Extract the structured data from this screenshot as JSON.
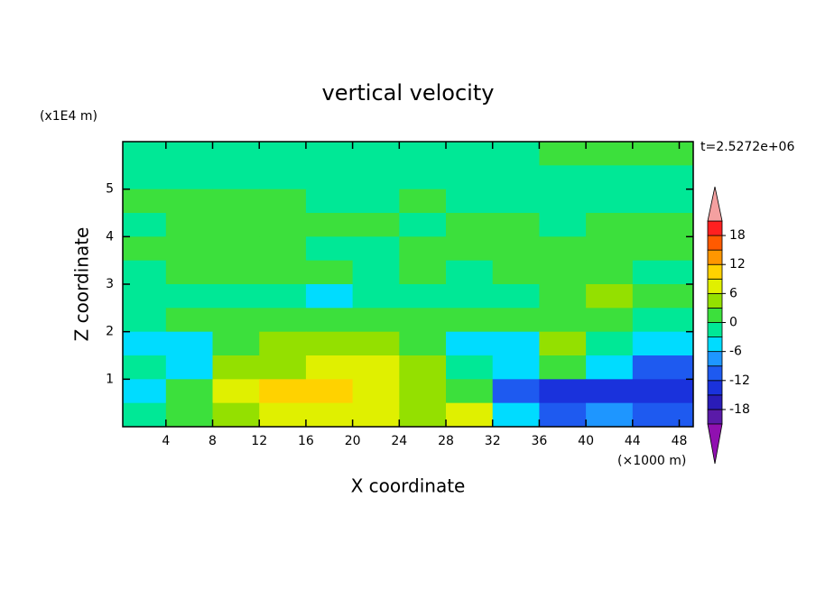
{
  "chart_data": {
    "type": "contour",
    "title": "vertical velocity",
    "x_label": "X coordinate",
    "y_label": "Z coordinate",
    "x_unit": "(×1000 m)",
    "y_unit": "(x1E4 m)",
    "annotation": "t=2.5272e+06",
    "x": [
      2,
      6,
      10,
      14,
      18,
      22,
      26,
      30,
      34,
      38,
      42,
      46
    ],
    "y": [
      5.75,
      5.25,
      4.75,
      4.25,
      3.75,
      3.25,
      2.75,
      2.25,
      1.75,
      1.25,
      0.75,
      0.25
    ],
    "z": [
      [
        -1,
        -1,
        -1,
        -1,
        -1,
        -1,
        -1,
        -1,
        -1,
        1,
        1,
        1
      ],
      [
        -1,
        -1,
        -1,
        -1,
        -1,
        -1,
        -1,
        -1,
        -1,
        -1,
        -1,
        -1
      ],
      [
        1,
        1,
        1,
        1,
        -1,
        -1,
        1,
        -1,
        -1,
        -1,
        -1,
        -1
      ],
      [
        -1,
        1,
        1,
        1,
        1,
        1,
        -1,
        1,
        1,
        -1,
        1,
        1
      ],
      [
        1,
        1,
        1,
        1,
        -1,
        -1,
        1,
        1,
        1,
        1,
        1,
        1
      ],
      [
        -1,
        1,
        1,
        1,
        1,
        -1,
        1,
        -1,
        1,
        1,
        1,
        -1
      ],
      [
        -1,
        -1,
        -1,
        -1,
        -4,
        -1,
        -1,
        -1,
        -1,
        1,
        4,
        1
      ],
      [
        -1,
        1,
        1,
        1,
        1,
        1,
        1,
        1,
        1,
        1,
        1,
        -1
      ],
      [
        -4,
        -4,
        1,
        4,
        4,
        4,
        1,
        -4,
        -4,
        4,
        -1,
        -4
      ],
      [
        -1,
        -4,
        4,
        4,
        7,
        7,
        4,
        -1,
        -4,
        1,
        -4,
        -10
      ],
      [
        -4,
        1,
        7,
        10,
        10,
        7,
        4,
        1,
        -10,
        -13,
        -13,
        -13
      ],
      [
        -1,
        1,
        4,
        7,
        7,
        7,
        4,
        7,
        -4,
        -10,
        -7,
        -10
      ]
    ],
    "xlim": [
      0.3,
      49.2
    ],
    "ylim": [
      0,
      6
    ],
    "xticks": [
      4,
      8,
      12,
      16,
      20,
      24,
      28,
      32,
      36,
      40,
      44,
      48
    ],
    "yticks": [
      1,
      2,
      3,
      4,
      5
    ],
    "levels": [
      -21,
      -18,
      -15,
      -12,
      -9,
      -6,
      -3,
      0,
      3,
      6,
      9,
      12,
      15,
      18,
      21
    ],
    "colors": [
      "#5a1aa8",
      "#2a1cb8",
      "#1a32dc",
      "#1e5af0",
      "#1e96ff",
      "#00dcff",
      "#00e896",
      "#3ce03c",
      "#94e000",
      "#e0f000",
      "#ffd200",
      "#ff9600",
      "#ff5a00",
      "#ff2020"
    ],
    "under_color": "#9010b0",
    "over_color": "#f4a0a0",
    "colorbar_ticks": [
      -18,
      -12,
      -6,
      0,
      6,
      12,
      18
    ]
  }
}
